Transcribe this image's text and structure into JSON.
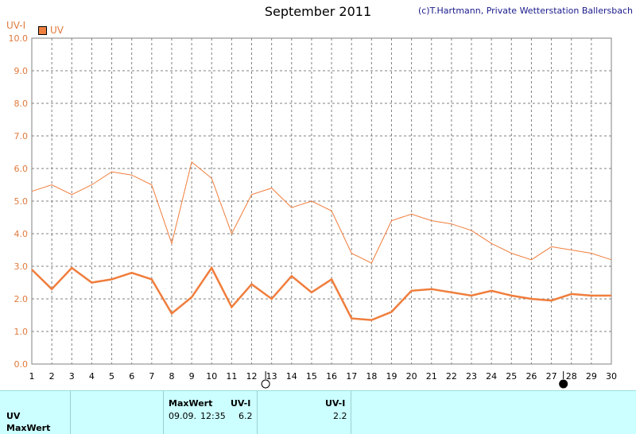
{
  "header": {
    "title": "September 2011",
    "copyright": "(c)T.Hartmann, Private Wetterstation Ballersbach",
    "y_unit": "UV-I",
    "legend_label": "UV"
  },
  "colors": {
    "series": "#f07d3c",
    "grid": "#808080",
    "panel_bg": "#ccffff"
  },
  "chart_data": {
    "type": "line",
    "title": "September 2011",
    "ylabel": "UV-I",
    "xlim": [
      1,
      30
    ],
    "ylim": [
      0,
      10
    ],
    "yticks": [
      "0.0",
      "1.0",
      "2.0",
      "3.0",
      "4.0",
      "5.0",
      "6.0",
      "7.0",
      "8.0",
      "9.0",
      "10.0"
    ],
    "xticks": [
      "1",
      "2",
      "3",
      "4",
      "5",
      "6",
      "7",
      "8",
      "9",
      "10",
      "11",
      "12",
      "13",
      "14",
      "15",
      "16",
      "17",
      "18",
      "19",
      "20",
      "21",
      "22",
      "23",
      "24",
      "25",
      "26",
      "27",
      "28",
      "29",
      "30"
    ],
    "grid": true,
    "moon_phases": [
      {
        "type": "full-moon",
        "x": 12.7
      },
      {
        "type": "new-moon",
        "x": 27.6
      }
    ],
    "series": [
      {
        "name": "UV",
        "line": "max",
        "x": [
          1,
          2,
          3,
          4,
          5,
          6,
          7,
          8,
          9,
          10,
          11,
          12,
          13,
          14,
          15,
          16,
          17,
          18,
          19,
          20,
          21,
          22,
          23,
          24,
          25,
          26,
          27,
          28,
          29,
          30
        ],
        "values": [
          5.3,
          5.5,
          5.2,
          5.5,
          5.9,
          5.8,
          5.5,
          3.7,
          6.2,
          5.7,
          4.0,
          5.2,
          5.4,
          4.8,
          5.0,
          4.7,
          3.4,
          3.1,
          4.4,
          4.6,
          4.4,
          4.3,
          4.1,
          3.7,
          3.4,
          3.2,
          3.6,
          3.5,
          3.4,
          3.2
        ]
      },
      {
        "name": "UV",
        "line": "mean",
        "x": [
          1,
          2,
          3,
          4,
          5,
          6,
          7,
          8,
          9,
          10,
          11,
          12,
          13,
          14,
          15,
          16,
          17,
          18,
          19,
          20,
          21,
          22,
          23,
          24,
          25,
          26,
          27,
          28,
          29,
          30
        ],
        "values": [
          2.9,
          2.3,
          2.95,
          2.5,
          2.6,
          2.8,
          2.6,
          1.55,
          2.05,
          2.95,
          1.75,
          2.45,
          2.0,
          2.7,
          2.2,
          2.6,
          1.4,
          1.35,
          1.6,
          2.25,
          2.3,
          2.2,
          2.1,
          2.25,
          2.1,
          2.0,
          1.95,
          2.15,
          2.1,
          2.1
        ]
      }
    ]
  },
  "panel": {
    "row_uv": "UV",
    "row_maxwert": "MaxWert",
    "max_header": "MaxWert",
    "unit_header_1": "UV-I",
    "max_date": "09.09.",
    "max_time": "12:35",
    "max_value": "6.2",
    "unit_header_2": "UV-I",
    "mean_value": "2.2"
  }
}
